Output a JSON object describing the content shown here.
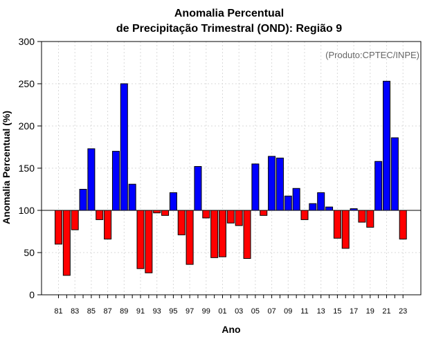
{
  "chart_data": {
    "type": "bar",
    "title_line1": "Anomalia Percentual",
    "title_line2": "de Precipitação Trimestral (OND): Região 9",
    "xlabel": "Ano",
    "ylabel": "Anomalia Percentual (%)",
    "credit": "(Produto:CPTEC/INPE)",
    "ylim": [
      0,
      300
    ],
    "yticks": [
      "0",
      "50",
      "100",
      "150",
      "200",
      "250",
      "300"
    ],
    "baseline": 100,
    "grid": true,
    "years": [
      1981,
      1982,
      1983,
      1984,
      1985,
      1986,
      1987,
      1988,
      1989,
      1990,
      1991,
      1992,
      1993,
      1994,
      1995,
      1996,
      1997,
      1998,
      1999,
      2000,
      2001,
      2002,
      2003,
      2004,
      2005,
      2006,
      2007,
      2008,
      2009,
      2010,
      2011,
      2012,
      2013,
      2014,
      2015,
      2016,
      2017,
      2018,
      2019,
      2020,
      2021,
      2022,
      2023
    ],
    "xtick_labels": [
      "81",
      "83",
      "85",
      "87",
      "89",
      "91",
      "93",
      "95",
      "97",
      "99",
      "01",
      "03",
      "05",
      "07",
      "09",
      "11",
      "13",
      "15",
      "17",
      "19",
      "21",
      "23"
    ],
    "values": [
      60,
      23,
      77,
      125,
      173,
      89,
      66,
      170,
      250,
      131,
      31,
      26,
      97,
      94,
      121,
      71,
      36,
      152,
      91,
      44,
      45,
      85,
      82,
      43,
      155,
      94,
      164,
      162,
      117,
      126,
      89,
      108,
      121,
      104,
      67,
      55,
      102,
      86,
      80,
      158,
      253,
      186,
      66
    ],
    "colors": {
      "above": "#0000ff",
      "below": "#ff0000"
    }
  }
}
